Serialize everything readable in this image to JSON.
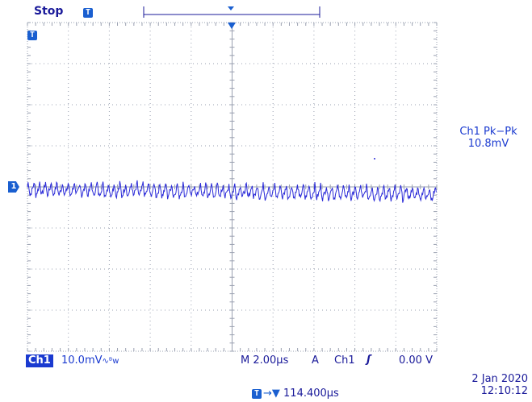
{
  "scope": {
    "status": "Stop",
    "trigger_badge": "T",
    "channel_marker": "1",
    "measurement": {
      "name": "Ch1 Pk−Pk",
      "value": "10.8mV"
    },
    "bottom": {
      "channel": "Ch1",
      "channel_scale": "10.0mV",
      "bandwidth_symbol": "∿ᴮw",
      "timebase": "M 2.00µs",
      "trigger_mode": "A",
      "trigger_source": "Ch1",
      "trigger_slope": "ʃ",
      "trigger_level": "0.00 V"
    },
    "date": "2 Jan  2020",
    "time": "12:10:12",
    "trigger_position": "114.400µs"
  },
  "colors": {
    "trace": "#2a2ad8",
    "grid": "#9aa0b0",
    "label_blue": "#1a3ad0",
    "text_dark": "#1a1a9a"
  },
  "chart_data": {
    "type": "line",
    "series": [
      {
        "values": [
          0.4,
          -0.3,
          0.3,
          -0.5,
          0.2,
          -0.4,
          0.5,
          -0.3,
          0.4,
          -0.6,
          0.3,
          -0.4
        ]
      }
    ]
  }
}
